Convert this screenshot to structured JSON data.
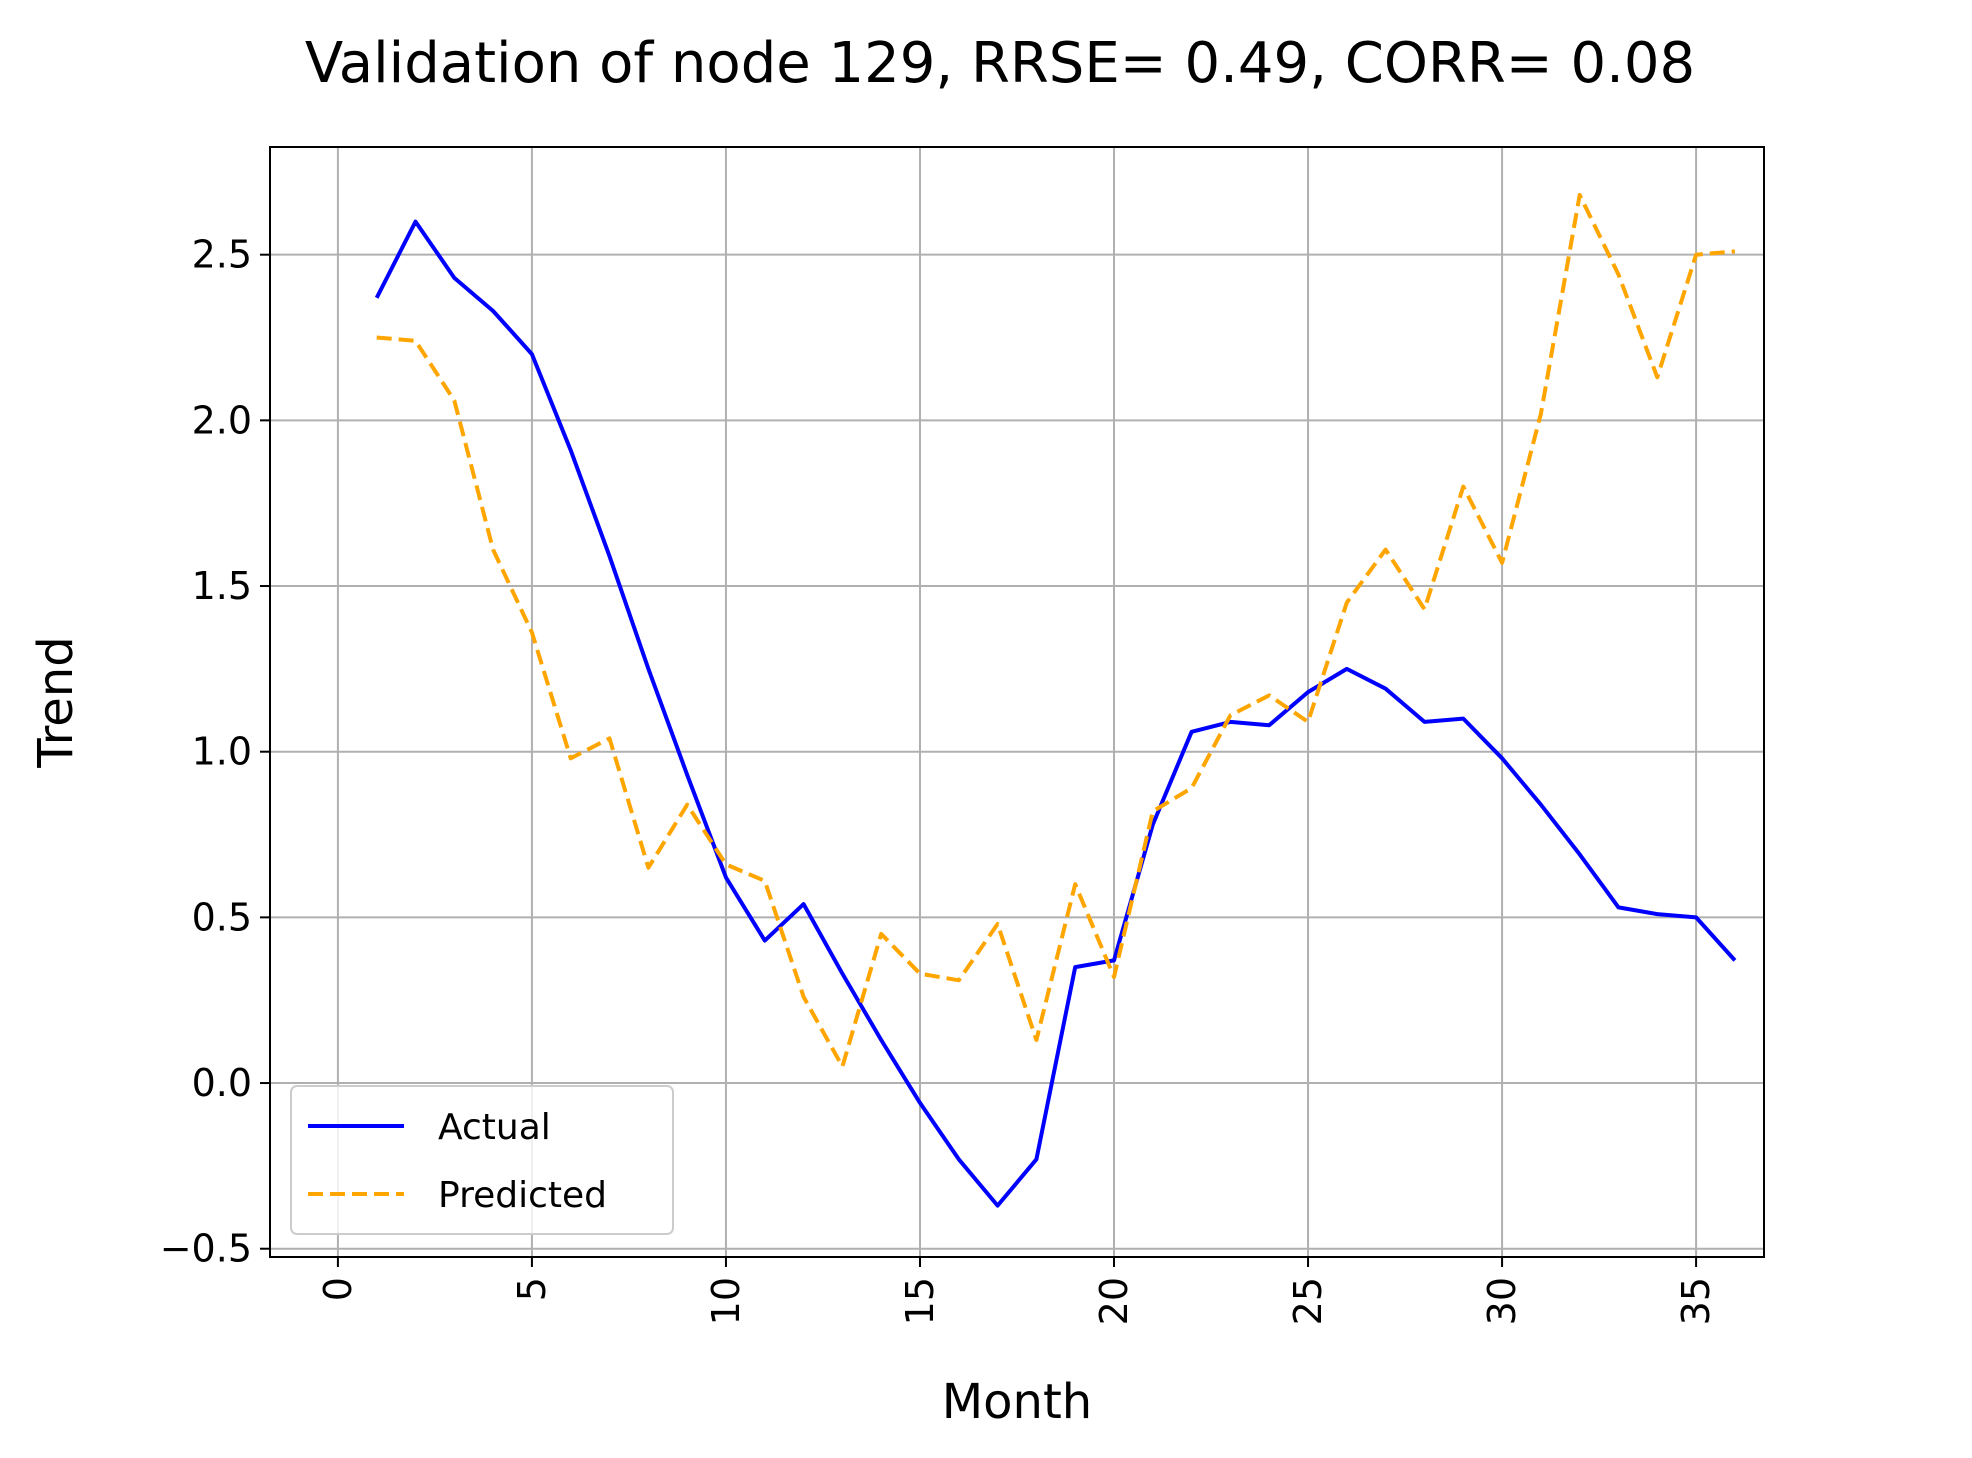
{
  "chart_data": {
    "type": "line",
    "title": "Validation of node 129, RRSE= 0.49, CORR= 0.08",
    "xlabel": "Month",
    "ylabel": "Trend",
    "xlim": [
      -1.75,
      36.75
    ],
    "ylim": [
      -0.525,
      2.825
    ],
    "xticks": [
      0,
      5,
      10,
      15,
      20,
      25,
      30,
      35
    ],
    "xtick_labels": [
      "0",
      "5",
      "10",
      "15",
      "20",
      "25",
      "30",
      "35"
    ],
    "xtick_rotation": "vertical",
    "yticks": [
      -0.5,
      0.0,
      0.5,
      1.0,
      1.5,
      2.0,
      2.5
    ],
    "ytick_labels": [
      "−0.5",
      "0.0",
      "0.5",
      "1.0",
      "1.5",
      "2.0",
      "2.5"
    ],
    "grid": true,
    "legend_position": "lower-left",
    "x": [
      1,
      2,
      3,
      4,
      5,
      6,
      7,
      8,
      9,
      10,
      11,
      12,
      13,
      14,
      15,
      16,
      17,
      18,
      19,
      20,
      21,
      22,
      23,
      24,
      25,
      26,
      27,
      28,
      29,
      30,
      31,
      32,
      33,
      34,
      35,
      36
    ],
    "series": [
      {
        "name": "Actual",
        "color": "#0000ff",
        "style": "solid",
        "values": [
          2.37,
          2.6,
          2.43,
          2.33,
          2.2,
          1.91,
          1.59,
          1.25,
          0.93,
          0.62,
          0.43,
          0.54,
          0.33,
          0.13,
          -0.06,
          -0.23,
          -0.37,
          -0.23,
          0.35,
          0.37,
          0.78,
          1.06,
          1.09,
          1.08,
          1.18,
          1.25,
          1.19,
          1.09,
          1.1,
          0.98,
          0.84,
          0.69,
          0.53,
          0.51,
          0.5,
          0.37
        ]
      },
      {
        "name": "Predicted",
        "color": "#ffa500",
        "style": "dashed",
        "values": [
          2.25,
          2.24,
          2.06,
          1.61,
          1.36,
          0.98,
          1.04,
          0.65,
          0.84,
          0.66,
          0.61,
          0.26,
          0.05,
          0.45,
          0.33,
          0.31,
          0.48,
          0.13,
          0.6,
          0.32,
          0.82,
          0.89,
          1.11,
          1.17,
          1.09,
          1.45,
          1.61,
          1.43,
          1.8,
          1.57,
          2.02,
          2.68,
          2.44,
          2.13,
          2.5,
          2.51
        ]
      }
    ]
  }
}
